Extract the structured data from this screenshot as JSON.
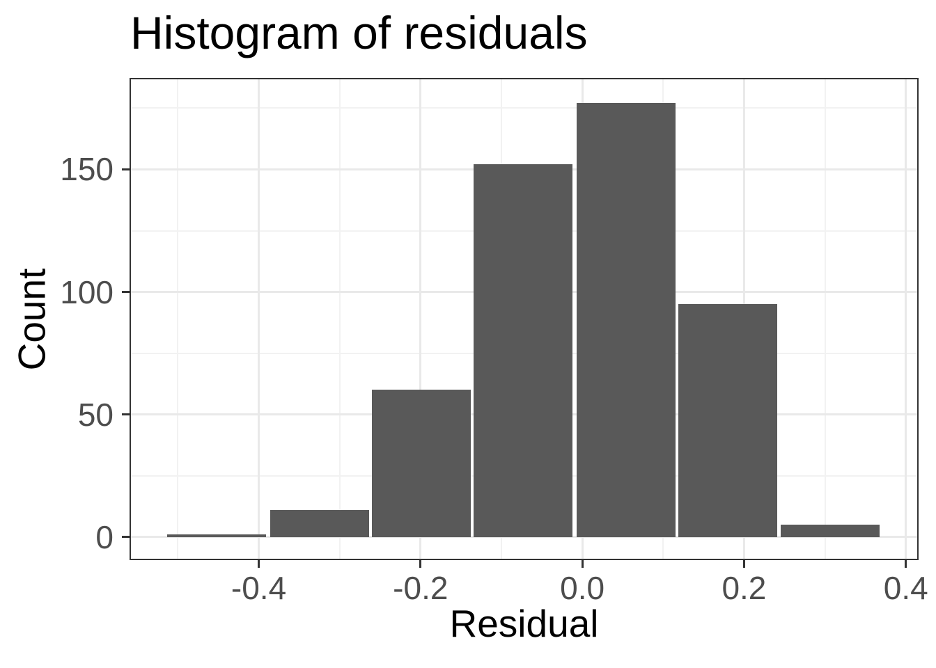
{
  "chart_data": {
    "type": "bar",
    "subtype": "histogram",
    "title": "Histogram of residuals",
    "xlabel": "Residual",
    "ylabel": "Count",
    "bin_centers": [
      -0.452,
      -0.325,
      -0.199,
      -0.073,
      0.054,
      0.18,
      0.306
    ],
    "binwidth": 0.1263,
    "counts": [
      1,
      11,
      60,
      152,
      177,
      95,
      5
    ],
    "xlim": [
      -0.558,
      0.414
    ],
    "ylim": [
      -8.85,
      186.75
    ],
    "x_ticks": {
      "values": [
        -0.4,
        -0.2,
        0.0,
        0.2,
        0.4
      ],
      "labels": [
        "-0.4",
        "-0.2",
        "0.0",
        "0.2",
        "0.4"
      ]
    },
    "x_minor_ticks": [
      -0.5,
      -0.3,
      -0.1,
      0.1,
      0.3
    ],
    "y_ticks": {
      "values": [
        0,
        50,
        100,
        150
      ],
      "labels": [
        "0",
        "50",
        "100",
        "150"
      ]
    },
    "y_minor_ticks": [
      25,
      75,
      125,
      175
    ],
    "grid": "major and minor, light gray on white",
    "legend": "none",
    "colors": {
      "bar_fill": "#595959",
      "panel_border": "#333333",
      "grid_major": "#e9e9e9",
      "grid_minor": "#f2f2f2",
      "tick_mark": "#333333",
      "tick_label": "#4d4d4d",
      "title_text": "#000000"
    }
  }
}
